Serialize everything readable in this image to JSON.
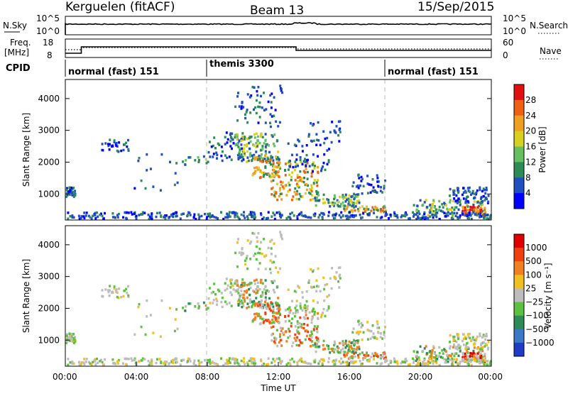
{
  "header": {
    "station": "Kerguelen (fitACF)",
    "beam": "Beam 13",
    "date": "15/Sep/2015"
  },
  "noise_panel": {
    "left_label": "N.Sky",
    "right_label": "N.Search",
    "left_ticks": [
      "10^5",
      "10^0"
    ],
    "right_ticks": [
      "10^5",
      "10^0"
    ]
  },
  "freq_panel": {
    "left_label_1": "Freq.",
    "left_label_2": "[MHz]",
    "right_label": "Nave",
    "left_ticks": [
      "18",
      "8"
    ],
    "right_ticks": [
      "60",
      "0"
    ],
    "cpid_label": "CPID"
  },
  "modes": [
    {
      "name": "normal (fast) 151",
      "start_hour": 0
    },
    {
      "name": "themis 3300",
      "start_hour": 8
    },
    {
      "name": "normal (fast) 151",
      "start_hour": 18
    }
  ],
  "chart_data": [
    {
      "type": "heatmap",
      "title": "Power",
      "ylabel": "Slant Range [km]",
      "xlabel": "",
      "xlim": [
        0,
        24
      ],
      "ylim": [
        180,
        4600
      ],
      "yticks": [
        "1000",
        "2000",
        "3000",
        "4000"
      ],
      "colorbar_label": "Power [dB]",
      "colorbar_ticks": [
        "4",
        "8",
        "12",
        "16",
        "20",
        "24",
        "28"
      ],
      "colorbar_colors": [
        "#0000ff",
        "#2050c0",
        "#2e8b57",
        "#66c060",
        "#d8d020",
        "#f0a020",
        "#f06010",
        "#e01010"
      ]
    },
    {
      "type": "heatmap",
      "title": "Velocity",
      "ylabel": "Slant Range [km]",
      "xlabel": "Time UT",
      "xlim": [
        0,
        24
      ],
      "ylim": [
        180,
        4600
      ],
      "yticks": [
        "1000",
        "2000",
        "3000",
        "4000"
      ],
      "xticks": [
        "00:00",
        "04:00",
        "08:00",
        "12:00",
        "16:00",
        "20:00",
        "00:00"
      ],
      "colorbar_label": "Velocity [m s⁻¹]",
      "colorbar_ticks": [
        "1000",
        "500",
        "100",
        "25",
        "−25",
        "−100",
        "−500",
        "−1000"
      ],
      "colorbar_colors": [
        "#1e3cc8",
        "#3c78c8",
        "#2e8b57",
        "#5cc040",
        "#bdbdbd",
        "#f0c020",
        "#f08020",
        "#f04010",
        "#e00000"
      ]
    }
  ]
}
